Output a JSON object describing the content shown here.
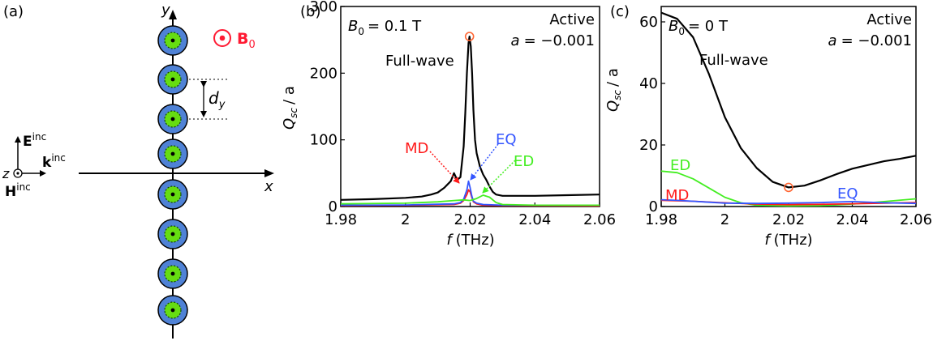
{
  "colors": {
    "fullwave": "#000000",
    "md": "#ff1a1a",
    "ed": "#44ee22",
    "eq": "#3355ff",
    "cylinder": "#4f82d6",
    "core": "#66dd11",
    "marker": "#ff6633",
    "b0": "#ff1a33"
  },
  "panel_a": {
    "label": "(a)",
    "y_axis": "y",
    "x_axis": "x",
    "b0_label": "B",
    "b0_sub": "0",
    "e_label": "E",
    "e_sup": "inc",
    "k_label": "k",
    "k_sup": "inc",
    "h_label": "H",
    "h_sup": "inc",
    "z_label": "z",
    "dy_label": "d",
    "dy_sub": "y",
    "cylinder_count": 8
  },
  "chart_data": [
    {
      "type": "line",
      "panel_label": "(b)",
      "title_b0": "B",
      "title_b0_sub": "0",
      "title_b0_value": "= 0.1 T",
      "title_active": "Active",
      "title_a": "a",
      "title_a_value": "= −0.001",
      "xlabel_var": "f",
      "xlabel_unit": "(THz)",
      "ylabel": "Q",
      "ylabel_sub": "sc",
      "ylabel_tail": "/ a",
      "xlim": [
        1.98,
        2.06
      ],
      "ylim": [
        0,
        300
      ],
      "xticks": [
        1.98,
        2,
        2.02,
        2.04,
        2.06
      ],
      "xtick_labels": [
        "1.98",
        "2",
        "2.02",
        "2.04",
        "2.06"
      ],
      "yticks": [
        0,
        100,
        200,
        300
      ],
      "ytick_labels": [
        "0",
        "100",
        "200",
        "300"
      ],
      "series": [
        {
          "name": "Full-wave",
          "color_key": "fullwave",
          "x": [
            1.98,
            1.99,
            2.0,
            2.005,
            2.008,
            2.01,
            2.012,
            2.014,
            2.015,
            2.016,
            2.017,
            2.018,
            2.0185,
            2.019,
            2.0195,
            2.0198,
            2.0202,
            2.0206,
            2.021,
            2.0215,
            2.022,
            2.023,
            2.024,
            2.025,
            2.026,
            2.027,
            2.028,
            2.03,
            2.035,
            2.04,
            2.05,
            2.06
          ],
          "y": [
            10,
            11,
            13,
            15,
            18,
            21,
            28,
            38,
            50,
            40,
            44,
            90,
            140,
            200,
            245,
            255,
            240,
            200,
            145,
            100,
            80,
            60,
            48,
            40,
            30,
            22,
            18,
            16,
            16,
            16,
            17,
            18
          ]
        },
        {
          "name": "MD",
          "color_key": "md",
          "x": [
            1.98,
            2.0,
            2.015,
            2.017,
            2.018,
            2.019,
            2.0195,
            2.02,
            2.0205,
            2.021,
            2.022,
            2.024,
            2.03,
            2.06
          ],
          "y": [
            1.5,
            1.8,
            3,
            5,
            9,
            18,
            25,
            22,
            14,
            7,
            4,
            2,
            1.5,
            1
          ]
        },
        {
          "name": "EQ",
          "color_key": "eq",
          "x": [
            1.98,
            2.0,
            2.015,
            2.017,
            2.018,
            2.019,
            2.0195,
            2.02,
            2.0205,
            2.021,
            2.022,
            2.024,
            2.03,
            2.06
          ],
          "y": [
            2,
            2.3,
            4,
            6,
            11,
            25,
            38,
            28,
            16,
            8,
            5,
            3,
            2,
            2
          ]
        },
        {
          "name": "ED",
          "color_key": "ed",
          "x": [
            1.98,
            2.0,
            2.01,
            2.015,
            2.018,
            2.02,
            2.022,
            2.024,
            2.026,
            2.028,
            2.03,
            2.04,
            2.06
          ],
          "y": [
            4,
            5,
            7,
            9,
            10,
            9,
            12,
            17,
            14,
            6,
            3,
            2,
            2
          ]
        }
      ],
      "marker": {
        "x": 2.0198,
        "y": 255
      },
      "annotations": {
        "fullwave": "Full-wave",
        "md": "MD",
        "eq": "EQ",
        "ed": "ED"
      }
    },
    {
      "type": "line",
      "panel_label": "(c)",
      "title_b0": "B",
      "title_b0_sub": "0",
      "title_b0_value": "= 0 T",
      "title_active": "Active",
      "title_a": "a",
      "title_a_value": "= −0.001",
      "xlabel_var": "f",
      "xlabel_unit": "(THz)",
      "ylabel": "Q",
      "ylabel_sub": "sc",
      "ylabel_tail": "/ a",
      "xlim": [
        1.98,
        2.06
      ],
      "ylim": [
        0,
        65
      ],
      "xticks": [
        1.98,
        2,
        2.02,
        2.04,
        2.06
      ],
      "xtick_labels": [
        "1.98",
        "2",
        "2.02",
        "2.04",
        "2.06"
      ],
      "yticks": [
        0,
        20,
        40,
        60
      ],
      "ytick_labels": [
        "0",
        "20",
        "40",
        "60"
      ],
      "series": [
        {
          "name": "Full-wave",
          "color_key": "fullwave",
          "x": [
            1.98,
            1.985,
            1.99,
            1.995,
            2.0,
            2.005,
            2.01,
            2.015,
            2.02,
            2.025,
            2.03,
            2.035,
            2.04,
            2.045,
            2.05,
            2.055,
            2.06
          ],
          "y": [
            63,
            61,
            55,
            43,
            29,
            19,
            12.5,
            8,
            6.2,
            6.8,
            8.5,
            10.5,
            12.3,
            13.5,
            14.7,
            15.5,
            16.5
          ]
        },
        {
          "name": "ED",
          "color_key": "ed",
          "x": [
            1.98,
            1.985,
            1.99,
            1.995,
            2.0,
            2.005,
            2.01,
            2.02,
            2.03,
            2.04,
            2.05,
            2.06
          ],
          "y": [
            11.5,
            11,
            9,
            6,
            3,
            1.2,
            0.4,
            0.2,
            0.3,
            0.8,
            1.6,
            2.5
          ]
        },
        {
          "name": "MD",
          "color_key": "md",
          "x": [
            1.98,
            1.99,
            2.0,
            2.01,
            2.02,
            2.03,
            2.04,
            2.05,
            2.06
          ],
          "y": [
            2,
            1.7,
            1.2,
            0.8,
            0.6,
            0.7,
            0.9,
            1.1,
            1.3
          ]
        },
        {
          "name": "EQ",
          "color_key": "eq",
          "x": [
            1.98,
            1.985,
            1.99,
            1.995,
            2.0,
            2.01,
            2.02,
            2.03,
            2.04,
            2.05,
            2.06
          ],
          "y": [
            2.2,
            2.0,
            1.7,
            1.4,
            1.1,
            1.0,
            1.1,
            1.3,
            1.6,
            1.2,
            1.0
          ]
        }
      ],
      "marker": {
        "x": 2.02,
        "y": 6.2
      },
      "annotations": {
        "fullwave": "Full-wave",
        "md": "MD",
        "eq": "EQ",
        "ed": "ED"
      }
    }
  ]
}
